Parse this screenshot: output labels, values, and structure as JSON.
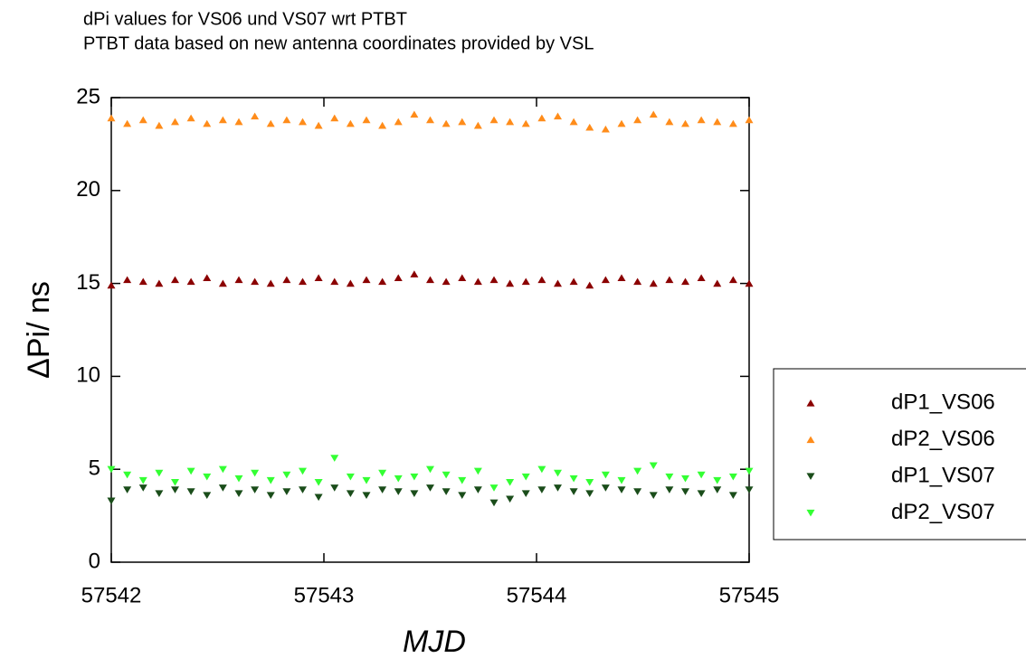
{
  "chart_data": {
    "type": "scatter",
    "title": "dPi values for  VS06 und VS07 wrt PTBT",
    "subtitle": "PTBT data based on new antenna coordinates provided by VSL",
    "xlabel": "MJD",
    "ylabel": "ΔPi/ ns",
    "x": [
      57542,
      57542.075,
      57542.15,
      57542.225,
      57542.3,
      57542.375,
      57542.45,
      57542.525,
      57542.6,
      57542.675,
      57542.75,
      57542.825,
      57542.9,
      57542.975,
      57543.05,
      57543.125,
      57543.2,
      57543.275,
      57543.35,
      57543.425,
      57543.5,
      57543.575,
      57543.65,
      57543.725,
      57543.8,
      57543.875,
      57543.95,
      57544.025,
      57544.1,
      57544.175,
      57544.25,
      57544.325,
      57544.4,
      57544.475,
      57544.55,
      57544.625,
      57544.7,
      57544.775,
      57544.85,
      57544.925,
      57545
    ],
    "series": [
      {
        "name": "dP1_VS06",
        "color": "#8b0000",
        "marker": "up",
        "values": [
          14.9,
          15.2,
          15.1,
          15.0,
          15.2,
          15.1,
          15.3,
          15.0,
          15.2,
          15.1,
          15.0,
          15.2,
          15.1,
          15.3,
          15.1,
          15.0,
          15.2,
          15.1,
          15.3,
          15.5,
          15.2,
          15.1,
          15.3,
          15.1,
          15.2,
          15.0,
          15.1,
          15.2,
          15.0,
          15.1,
          14.9,
          15.2,
          15.3,
          15.1,
          15.0,
          15.2,
          15.1,
          15.3,
          15.0,
          15.2,
          15.0
        ]
      },
      {
        "name": "dP2_VS06",
        "color": "#ff8c1a",
        "marker": "up",
        "values": [
          23.9,
          23.6,
          23.8,
          23.5,
          23.7,
          23.9,
          23.6,
          23.8,
          23.7,
          24.0,
          23.6,
          23.8,
          23.7,
          23.5,
          23.9,
          23.6,
          23.8,
          23.5,
          23.7,
          24.1,
          23.8,
          23.6,
          23.7,
          23.5,
          23.8,
          23.7,
          23.6,
          23.9,
          24.0,
          23.7,
          23.4,
          23.3,
          23.6,
          23.8,
          24.1,
          23.7,
          23.6,
          23.8,
          23.7,
          23.6,
          23.8
        ]
      },
      {
        "name": "dP1_VS07",
        "color": "#1a4d1a",
        "marker": "down",
        "values": [
          3.3,
          3.9,
          4.0,
          3.7,
          3.9,
          3.8,
          3.6,
          4.0,
          3.7,
          3.9,
          3.6,
          3.8,
          3.9,
          3.5,
          4.0,
          3.7,
          3.6,
          3.9,
          3.8,
          3.7,
          4.0,
          3.8,
          3.6,
          3.9,
          3.2,
          3.4,
          3.7,
          3.9,
          4.0,
          3.8,
          3.7,
          4.0,
          3.9,
          3.8,
          3.6,
          3.9,
          3.8,
          3.7,
          3.9,
          3.6,
          3.9
        ]
      },
      {
        "name": "dP2_VS07",
        "color": "#33ff33",
        "marker": "down",
        "values": [
          5.0,
          4.7,
          4.4,
          4.8,
          4.3,
          4.9,
          4.6,
          5.0,
          4.5,
          4.8,
          4.4,
          4.7,
          4.9,
          4.3,
          5.6,
          4.6,
          4.4,
          4.8,
          4.5,
          4.6,
          5.0,
          4.7,
          4.4,
          4.9,
          4.0,
          4.3,
          4.6,
          5.0,
          4.8,
          4.5,
          4.3,
          4.7,
          4.4,
          4.9,
          5.2,
          4.6,
          4.5,
          4.7,
          4.4,
          4.6,
          4.9
        ]
      }
    ],
    "xlim": [
      57542,
      57545
    ],
    "xticks": [
      57542,
      57543,
      57544,
      57545
    ],
    "ylim": [
      0,
      25
    ],
    "yticks": [
      0,
      5,
      10,
      15,
      20,
      25
    ],
    "grid": false,
    "legend": "right"
  }
}
